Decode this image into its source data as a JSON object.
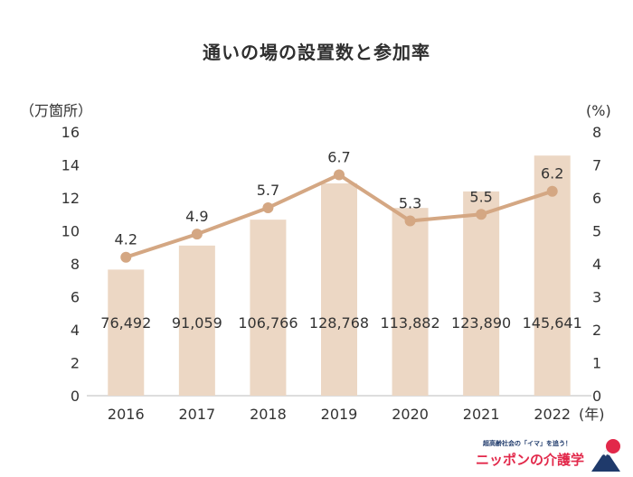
{
  "title": "通いの場の設置数と参加率",
  "chart_data": {
    "type": "bar+line",
    "categories": [
      "2016",
      "2017",
      "2018",
      "2019",
      "2020",
      "2021",
      "2022"
    ],
    "x_unit": "(年)",
    "left_axis": {
      "label": "（万箇所）",
      "ylim": [
        0,
        16
      ],
      "ticks": [
        0,
        2,
        4,
        6,
        8,
        10,
        12,
        14,
        16
      ]
    },
    "right_axis": {
      "label": "(%)",
      "ylim": [
        0,
        8
      ],
      "ticks": [
        0,
        1,
        2,
        3,
        4,
        5,
        6,
        7,
        8
      ]
    },
    "bars": {
      "values": [
        76492,
        91059,
        106766,
        128768,
        113882,
        123890,
        145641
      ],
      "labels": [
        "76,492",
        "91,059",
        "106,766",
        "128,768",
        "113,882",
        "123,890",
        "145,641"
      ],
      "color": "#ecd7c4"
    },
    "line": {
      "values": [
        4.2,
        4.9,
        5.7,
        6.7,
        5.3,
        5.5,
        6.2
      ],
      "labels": [
        "4.2",
        "4.9",
        "5.7",
        "6.7",
        "5.3",
        "5.5",
        "6.2"
      ],
      "color": "#d4a783"
    },
    "grid": false
  },
  "logo": {
    "tagline": "超高齢社会の「イマ」を追う！",
    "name": "ニッポンの介護学"
  }
}
